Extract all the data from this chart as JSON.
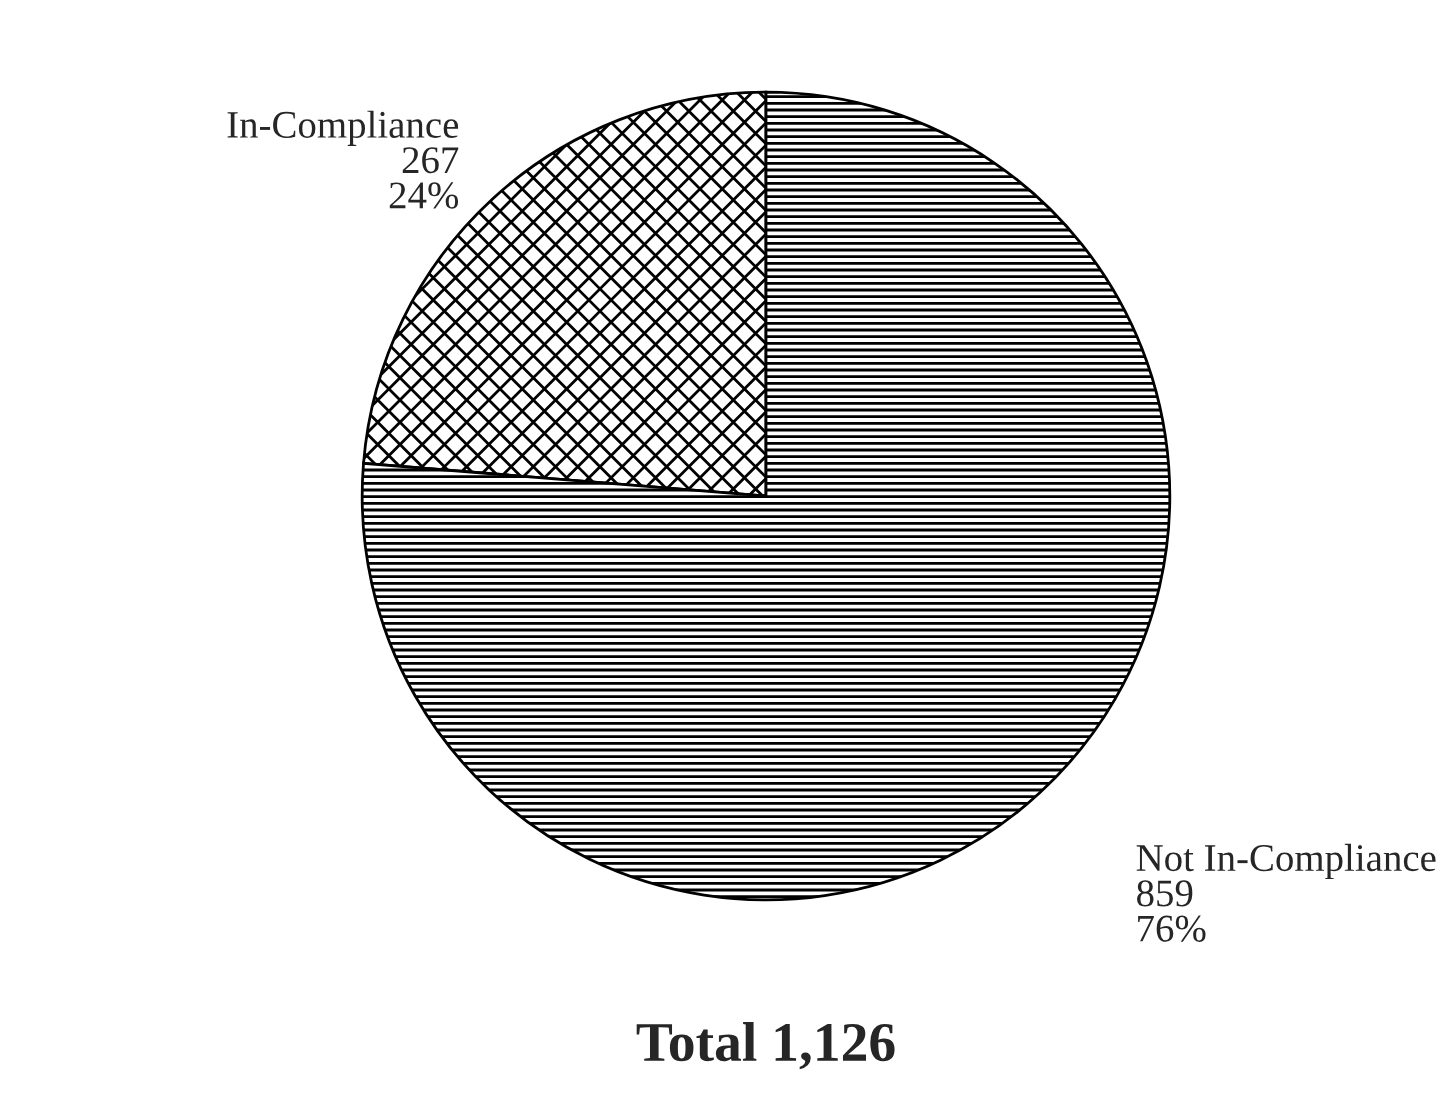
{
  "chart_data": {
    "type": "pie",
    "title": "Total 1,126",
    "categories": [
      "In-Compliance",
      "Not In-Compliance"
    ],
    "values": [
      267,
      859
    ],
    "value_labels": [
      "267\n24%",
      "859\n76%"
    ],
    "colors": [
      "#ffffff",
      "#ffffff"
    ]
  }
}
